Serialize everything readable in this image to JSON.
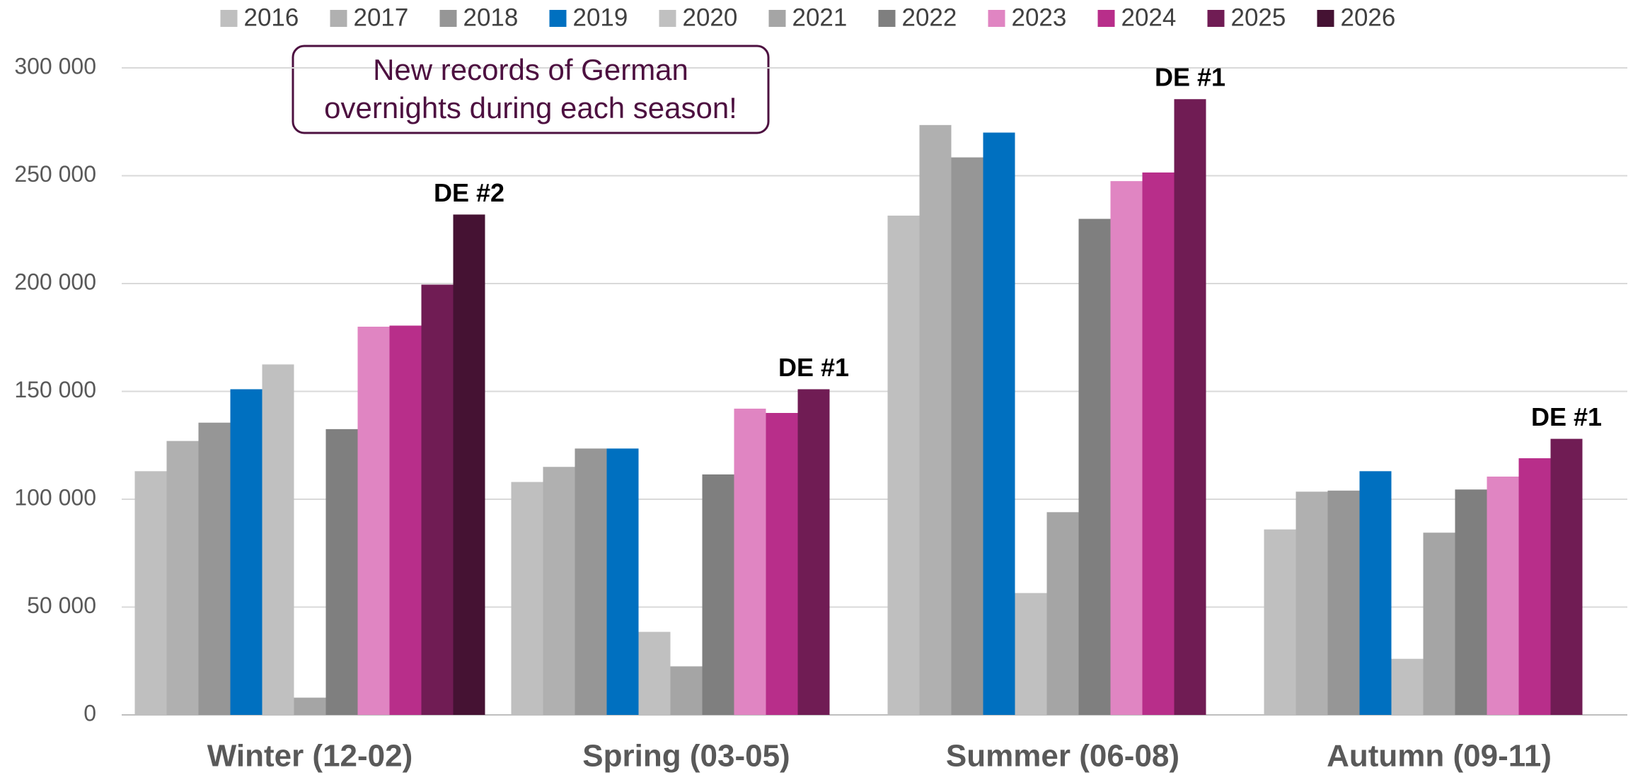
{
  "chart_data": {
    "type": "bar",
    "categories": [
      "Winter (12-02)",
      "Spring (03-05)",
      "Summer (06-08)",
      "Autumn (09-11)"
    ],
    "series": [
      {
        "name": "2016",
        "color": "#bfbfbf",
        "values": [
          113000,
          108000,
          231500,
          86000
        ]
      },
      {
        "name": "2017",
        "color": "#b0b0b0",
        "values": [
          127000,
          115000,
          273500,
          103500
        ]
      },
      {
        "name": "2018",
        "color": "#969696",
        "values": [
          135500,
          123500,
          258500,
          104000
        ]
      },
      {
        "name": "2019",
        "color": "#0070c0",
        "values": [
          151000,
          123500,
          270000,
          113000
        ]
      },
      {
        "name": "2020",
        "color": "#c0c0c0",
        "values": [
          162500,
          38500,
          56500,
          26000
        ]
      },
      {
        "name": "2021",
        "color": "#a5a5a5",
        "values": [
          8000,
          22500,
          94000,
          84500
        ]
      },
      {
        "name": "2022",
        "color": "#7f7f7f",
        "values": [
          132500,
          111500,
          230000,
          104500
        ]
      },
      {
        "name": "2023",
        "color": "#e085c2",
        "values": [
          180000,
          142000,
          247500,
          110500
        ]
      },
      {
        "name": "2024",
        "color": "#b82e8a",
        "values": [
          180500,
          140000,
          251500,
          119000
        ]
      },
      {
        "name": "2025",
        "color": "#701c54",
        "values": [
          199500,
          151000,
          285500,
          128000
        ]
      },
      {
        "name": "2026",
        "color": "#451233",
        "values": [
          232000,
          null,
          null,
          null
        ]
      }
    ],
    "ylim": [
      0,
      300000
    ],
    "yticks": [
      {
        "value": 0,
        "label": "0"
      },
      {
        "value": 50000,
        "label": "50 000"
      },
      {
        "value": 100000,
        "label": "100 000"
      },
      {
        "value": 150000,
        "label": "150 000"
      },
      {
        "value": 200000,
        "label": "200 000"
      },
      {
        "value": 250000,
        "label": "250 000"
      },
      {
        "value": 300000,
        "label": "300 000"
      }
    ],
    "grid": true,
    "legend": "top",
    "annotations": [
      {
        "text": "DE #2",
        "category": 0,
        "series": 10
      },
      {
        "text": "DE #1",
        "category": 1,
        "series": 9
      },
      {
        "text": "DE #1",
        "category": 2,
        "series": 9
      },
      {
        "text": "DE #1",
        "category": 3,
        "series": 9
      }
    ],
    "callout": {
      "lines": [
        "New records of German",
        "overnights during each season!"
      ],
      "color": "#4d1040"
    }
  }
}
